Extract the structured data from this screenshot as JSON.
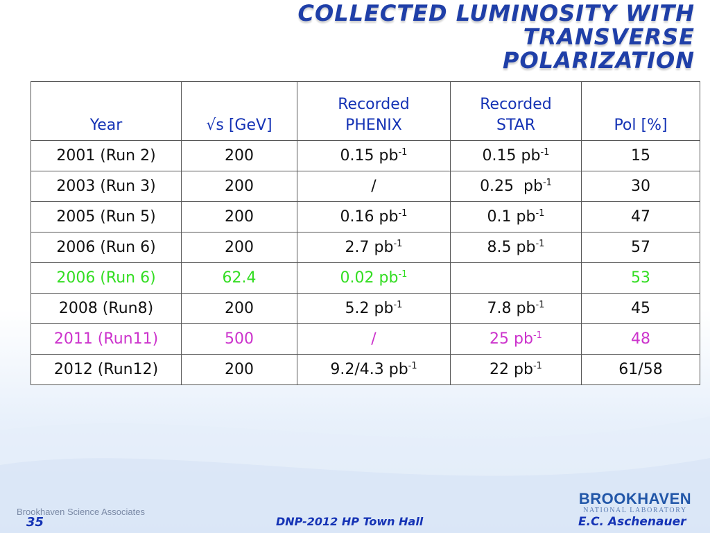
{
  "title": {
    "line1": "COLLECTED LUMINOSITY WITH TRANSVERSE",
    "line2": "POLARIZATION"
  },
  "table": {
    "headers": [
      "Year",
      "√s [GeV]",
      "Recorded PHENIX",
      "Recorded STAR",
      "Pol [%]"
    ],
    "unit_exponent": "-1",
    "rows": [
      {
        "year": "2001 (Run 2)",
        "sqrt_s": "200",
        "phenix": "0.15 pb",
        "star": "0.15 pb",
        "pol": "15"
      },
      {
        "year": "2003 (Run 3)",
        "sqrt_s": "200",
        "phenix": "/",
        "star": "0.25  pb",
        "pol": "30"
      },
      {
        "year": "2005 (Run 5)",
        "sqrt_s": "200",
        "phenix": "0.16 pb",
        "star": "0.1 pb",
        "pol": "47"
      },
      {
        "year": "2006 (Run 6)",
        "sqrt_s": "200",
        "phenix": "2.7 pb",
        "star": "8.5 pb",
        "pol": "57"
      },
      {
        "year": "2006 (Run 6)",
        "sqrt_s": "62.4",
        "phenix": "0.02 pb",
        "star": "",
        "pol": "53"
      },
      {
        "year": "2008 (Run8)",
        "sqrt_s": "200",
        "phenix": "5.2 pb",
        "star": "7.8 pb",
        "pol": "45"
      },
      {
        "year": "2011 (Run11)",
        "sqrt_s": "500",
        "phenix": "/",
        "star": "25 pb",
        "pol": "48"
      },
      {
        "year": "2012 (Run12)",
        "sqrt_s": "200",
        "phenix": "9.2/4.3 pb",
        "star": "22 pb",
        "pol": "61/58"
      }
    ]
  },
  "colors": {
    "title": "#1f3fa8",
    "header": "#1533b5",
    "highlight_green": "#33dd22",
    "highlight_purple": "#cc33cc"
  },
  "footer": {
    "organization": "Brookhaven Science Associates",
    "slide_number": "35",
    "center_text": "DNP-2012 HP Town Hall",
    "logo_main": "BROOKHAVEN",
    "logo_sub": "NATIONAL LABORATORY",
    "author": "E.C. Aschenauer"
  }
}
